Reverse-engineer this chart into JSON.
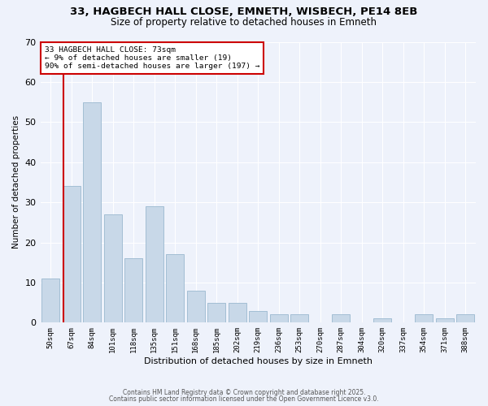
{
  "title_line1": "33, HAGBECH HALL CLOSE, EMNETH, WISBECH, PE14 8EB",
  "title_line2": "Size of property relative to detached houses in Emneth",
  "xlabel": "Distribution of detached houses by size in Emneth",
  "ylabel": "Number of detached properties",
  "categories": [
    "50sqm",
    "67sqm",
    "84sqm",
    "101sqm",
    "118sqm",
    "135sqm",
    "151sqm",
    "168sqm",
    "185sqm",
    "202sqm",
    "219sqm",
    "236sqm",
    "253sqm",
    "270sqm",
    "287sqm",
    "304sqm",
    "320sqm",
    "337sqm",
    "354sqm",
    "371sqm",
    "388sqm"
  ],
  "values": [
    11,
    34,
    55,
    27,
    16,
    29,
    17,
    8,
    5,
    5,
    3,
    2,
    2,
    0,
    2,
    0,
    1,
    0,
    2,
    1,
    2
  ],
  "bar_color": "#c8d8e8",
  "bar_edgecolor": "#9ab8cf",
  "vline_x_index": 1,
  "vline_color": "#cc0000",
  "annotation_line1": "33 HAGBECH HALL CLOSE: 73sqm",
  "annotation_line2": "← 9% of detached houses are smaller (19)",
  "annotation_line3": "90% of semi-detached houses are larger (197) →",
  "annotation_box_color": "#cc0000",
  "ylim": [
    0,
    70
  ],
  "yticks": [
    0,
    10,
    20,
    30,
    40,
    50,
    60,
    70
  ],
  "footer_line1": "Contains HM Land Registry data © Crown copyright and database right 2025.",
  "footer_line2": "Contains public sector information licensed under the Open Government Licence v3.0.",
  "background_color": "#eef2fb"
}
